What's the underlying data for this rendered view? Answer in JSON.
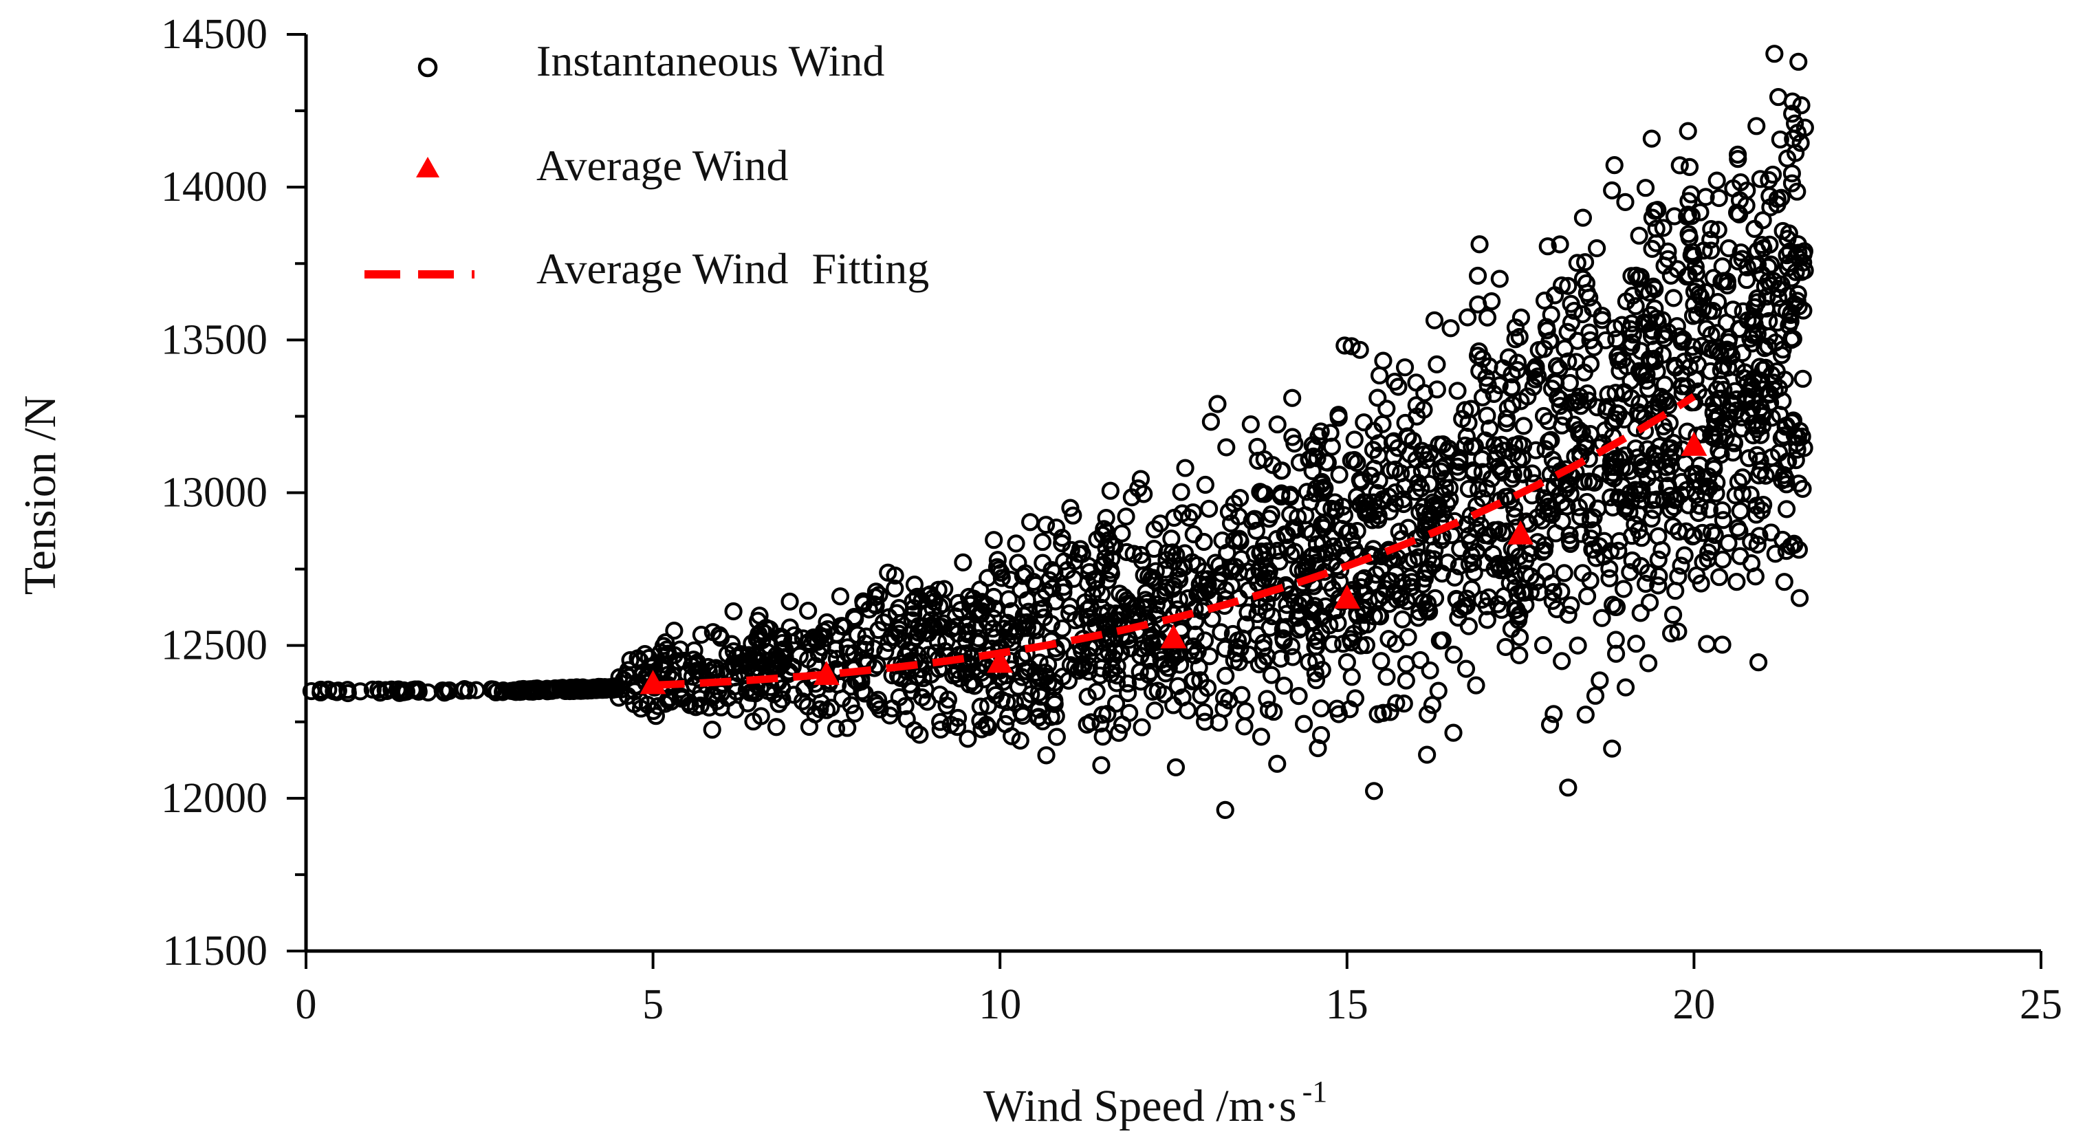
{
  "chart_data": {
    "type": "scatter",
    "title": "",
    "xlabel": "Wind Speed /m·s",
    "xlabel_sup": "-1",
    "ylabel": "Tension /N",
    "xlim": [
      0,
      25
    ],
    "ylim": [
      11500,
      14500
    ],
    "x_ticks": [
      0,
      5,
      10,
      15,
      20,
      25
    ],
    "y_ticks": [
      11500,
      12000,
      12500,
      13000,
      13500,
      14000,
      14500
    ],
    "x_tick_labels": [
      "0",
      "5",
      "10",
      "15",
      "20",
      "25"
    ],
    "y_tick_labels": [
      "11500",
      "12000",
      "12500",
      "13000",
      "13500",
      "14000",
      "14500"
    ],
    "grid": false,
    "legend_position": "top-left",
    "legend": {
      "instantaneous": "Instantaneous Wind",
      "average": "Average Wind",
      "fitting_a": "Average Wind",
      "fitting_b": "Fitting"
    },
    "colors": {
      "instantaneous": "#000000",
      "average": "#ff0000",
      "fitting": "#ff0000",
      "axis": "#000000"
    },
    "series": [
      {
        "name": "Instantaneous Wind",
        "marker": "circle-open",
        "model": {
          "base": 12350,
          "coef": 0.12,
          "exponent": 3
        },
        "x_range": [
          0,
          21.6
        ],
        "count": 2400,
        "outliers": [
          {
            "x": 20.9,
            "y": 14200
          },
          {
            "x": 19.4,
            "y": 13900
          },
          {
            "x": 18.4,
            "y": 13900
          },
          {
            "x": 18.6,
            "y": 13800
          },
          {
            "x": 21.0,
            "y": 13800
          },
          {
            "x": 20.5,
            "y": 13800
          },
          {
            "x": 17.2,
            "y": 13700
          },
          {
            "x": 18.4,
            "y": 13700
          },
          {
            "x": 19.2,
            "y": 13700
          },
          {
            "x": 21.5,
            "y": 13650
          },
          {
            "x": 21.4,
            "y": 13500
          },
          {
            "x": 21.5,
            "y": 13180
          },
          {
            "x": 14.7,
            "y": 13100
          },
          {
            "x": 20.7,
            "y": 13050
          },
          {
            "x": 12.4,
            "y": 12780
          }
        ]
      },
      {
        "name": "Average Wind",
        "marker": "triangle",
        "x": [
          5,
          7.5,
          10,
          12.5,
          15,
          17.5,
          20
        ],
        "y": [
          12370,
          12400,
          12440,
          12520,
          12650,
          12860,
          13150
        ]
      },
      {
        "name": "Average Wind Fitting",
        "marker": "dashed-line",
        "x_range": [
          5,
          20
        ]
      }
    ]
  }
}
